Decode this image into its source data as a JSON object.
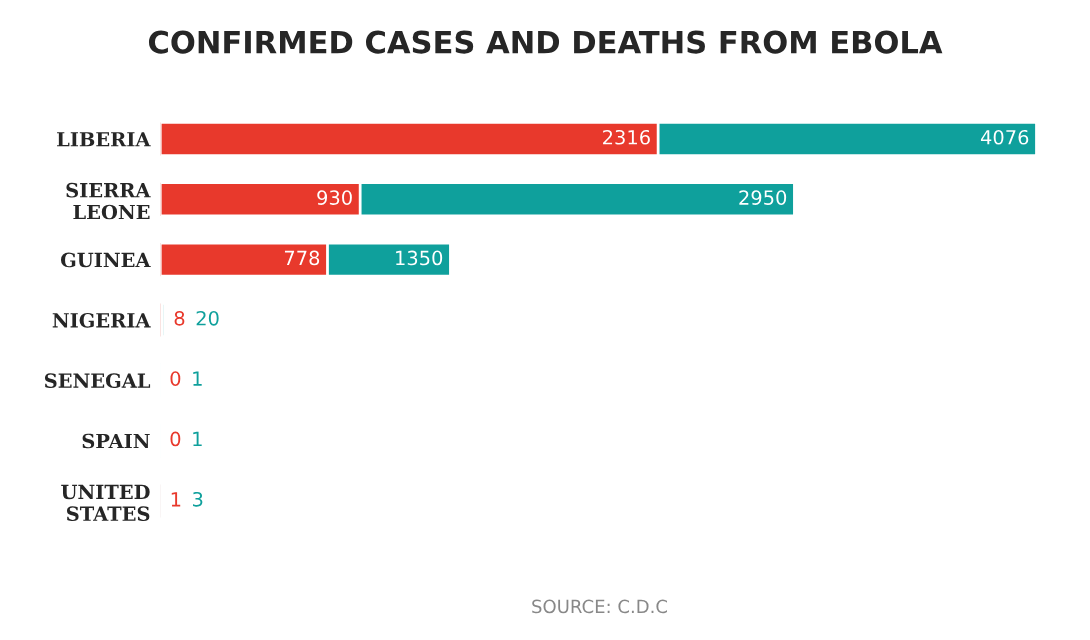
{
  "chart_data": {
    "type": "bar",
    "orientation": "horizontal",
    "title": "CONFIRMED CASES AND DEATHS FROM EBOLA",
    "categories": [
      "LIBERIA",
      "SIERRA\nLEONE",
      "GUINEA",
      "NIGERIA",
      "SENEGAL",
      "SPAIN",
      "UNITED\nSTATES"
    ],
    "series": [
      {
        "color": "#0fa09c",
        "values": [
          4076,
          2950,
          1350,
          20,
          1,
          1,
          3
        ]
      },
      {
        "color": "#e8392c",
        "values": [
          2316,
          930,
          778,
          8,
          0,
          0,
          1
        ]
      }
    ],
    "data_labels": true,
    "annotations": [
      "SOURCE: C.D.C"
    ],
    "grid": false,
    "legend": false
  }
}
